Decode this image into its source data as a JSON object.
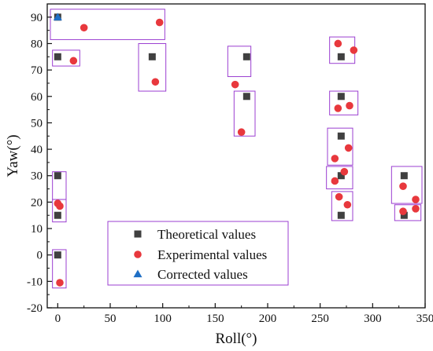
{
  "chart_data": {
    "type": "scatter",
    "xlabel": "Roll(°)",
    "ylabel": "Yaw(°)",
    "xlim": [
      -10,
      350
    ],
    "ylim": [
      -20,
      95
    ],
    "xticks": [
      0,
      50,
      100,
      150,
      200,
      250,
      300,
      350
    ],
    "yticks": [
      -20,
      -10,
      0,
      10,
      20,
      30,
      40,
      50,
      60,
      70,
      80,
      90
    ],
    "grid": false,
    "legend_position": "bottom-center",
    "series": [
      {
        "name": "Theoretical values",
        "marker": "square",
        "color": "#404040",
        "points": [
          [
            0,
            90
          ],
          [
            0,
            75
          ],
          [
            90,
            75
          ],
          [
            180,
            75
          ],
          [
            270,
            75
          ],
          [
            180,
            60
          ],
          [
            270,
            60
          ],
          [
            270,
            45
          ],
          [
            0,
            30
          ],
          [
            270,
            30
          ],
          [
            330,
            30
          ],
          [
            0,
            15
          ],
          [
            270,
            15
          ],
          [
            330,
            15
          ],
          [
            0,
            0
          ]
        ]
      },
      {
        "name": "Experimental values",
        "marker": "circle",
        "color": "#e8383d",
        "points": [
          [
            25,
            86
          ],
          [
            97,
            88
          ],
          [
            15,
            73.5
          ],
          [
            93,
            65.5
          ],
          [
            169,
            64.5
          ],
          [
            175,
            46.5
          ],
          [
            267,
            80
          ],
          [
            282,
            77.5
          ],
          [
            267,
            55.5
          ],
          [
            278,
            56.5
          ],
          [
            264,
            36.5
          ],
          [
            277,
            40.5
          ],
          [
            264,
            28
          ],
          [
            273,
            31.5
          ],
          [
            268,
            22
          ],
          [
            276,
            19
          ],
          [
            329,
            26
          ],
          [
            341,
            21
          ],
          [
            329,
            16.5
          ],
          [
            341,
            17.5
          ],
          [
            0,
            19.5
          ],
          [
            2,
            18.5
          ],
          [
            2,
            -10.5
          ]
        ]
      },
      {
        "name": "Corrected values",
        "marker": "triangle",
        "color": "#1f6fc5",
        "points": [
          [
            0,
            90
          ]
        ]
      }
    ],
    "boxes": [
      [
        -7,
        102,
        81.5,
        93
      ],
      [
        -5,
        21,
        71.5,
        77.5
      ],
      [
        77,
        103,
        62,
        80
      ],
      [
        162,
        184,
        67.5,
        79
      ],
      [
        168,
        188,
        45,
        62
      ],
      [
        259,
        283,
        72.5,
        82.5
      ],
      [
        259,
        286,
        53,
        62
      ],
      [
        257,
        281,
        34,
        48
      ],
      [
        256,
        281,
        25,
        33.5
      ],
      [
        261,
        281,
        13,
        24
      ],
      [
        318,
        347,
        19.5,
        33.5
      ],
      [
        321,
        346,
        13,
        19
      ],
      [
        -5,
        8,
        21,
        31.5
      ],
      [
        -5,
        8,
        12.5,
        21
      ],
      [
        -5,
        8,
        -12.5,
        2
      ]
    ],
    "colors": {
      "box_stroke": "#9b3fd1",
      "axis": "#111111"
    }
  }
}
